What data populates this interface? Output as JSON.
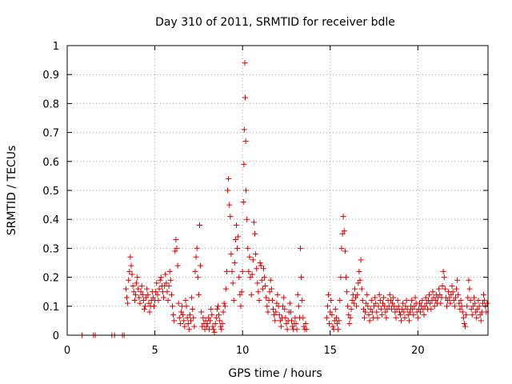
{
  "chart_data": {
    "type": "scatter",
    "title": "Day 310 of 2011, SRMTID for receiver bdle",
    "xlabel": "GPS time / hours",
    "ylabel": "SRMTID / TECUs",
    "xlim": [
      0,
      24
    ],
    "ylim": [
      0,
      1
    ],
    "xticks": [
      0,
      5,
      10,
      15,
      20
    ],
    "yticks": [
      0,
      0.1,
      0.2,
      0.3,
      0.4,
      0.5,
      0.6,
      0.7,
      0.8,
      0.9,
      1
    ],
    "grid": true,
    "marker": "plus",
    "marker_color": "#e00000",
    "points": [
      [
        0.85,
        0.0
      ],
      [
        1.5,
        0.0
      ],
      [
        1.6,
        0.0
      ],
      [
        2.55,
        0.0
      ],
      [
        2.7,
        0.0
      ],
      [
        3.15,
        0.0
      ],
      [
        3.25,
        0.0
      ],
      [
        3.35,
        0.16
      ],
      [
        3.4,
        0.13
      ],
      [
        3.45,
        0.11
      ],
      [
        3.5,
        0.19
      ],
      [
        3.55,
        0.22
      ],
      [
        3.6,
        0.27
      ],
      [
        3.65,
        0.24
      ],
      [
        3.7,
        0.21
      ],
      [
        3.75,
        0.17
      ],
      [
        3.8,
        0.15
      ],
      [
        3.85,
        0.12
      ],
      [
        3.9,
        0.14
      ],
      [
        3.95,
        0.18
      ],
      [
        4.0,
        0.2
      ],
      [
        4.05,
        0.16
      ],
      [
        4.1,
        0.13
      ],
      [
        4.15,
        0.11
      ],
      [
        4.2,
        0.15
      ],
      [
        4.25,
        0.17
      ],
      [
        4.3,
        0.14
      ],
      [
        4.35,
        0.12
      ],
      [
        4.4,
        0.09
      ],
      [
        4.45,
        0.1
      ],
      [
        4.5,
        0.13
      ],
      [
        4.55,
        0.16
      ],
      [
        4.6,
        0.14
      ],
      [
        4.65,
        0.11
      ],
      [
        4.7,
        0.08
      ],
      [
        4.75,
        0.1
      ],
      [
        4.8,
        0.12
      ],
      [
        4.85,
        0.15
      ],
      [
        4.9,
        0.13
      ],
      [
        4.95,
        0.1
      ],
      [
        5.0,
        0.12
      ],
      [
        5.05,
        0.15
      ],
      [
        5.1,
        0.18
      ],
      [
        5.15,
        0.14
      ],
      [
        5.2,
        0.12
      ],
      [
        5.25,
        0.16
      ],
      [
        5.3,
        0.19
      ],
      [
        5.35,
        0.2
      ],
      [
        5.4,
        0.17
      ],
      [
        5.45,
        0.15
      ],
      [
        5.5,
        0.13
      ],
      [
        5.55,
        0.17
      ],
      [
        5.6,
        0.21
      ],
      [
        5.65,
        0.18
      ],
      [
        5.7,
        0.15
      ],
      [
        5.75,
        0.12
      ],
      [
        5.8,
        0.17
      ],
      [
        5.85,
        0.22
      ],
      [
        5.9,
        0.19
      ],
      [
        5.95,
        0.14
      ],
      [
        6.0,
        0.1
      ],
      [
        6.05,
        0.07
      ],
      [
        6.1,
        0.05
      ],
      [
        6.15,
        0.29
      ],
      [
        6.2,
        0.33
      ],
      [
        6.25,
        0.3
      ],
      [
        6.3,
        0.24
      ],
      [
        6.35,
        0.11
      ],
      [
        6.4,
        0.06
      ],
      [
        6.45,
        0.04
      ],
      [
        6.5,
        0.08
      ],
      [
        6.55,
        0.1
      ],
      [
        6.6,
        0.07
      ],
      [
        6.65,
        0.05
      ],
      [
        6.7,
        0.03
      ],
      [
        6.75,
        0.12
      ],
      [
        6.8,
        0.1
      ],
      [
        6.85,
        0.06
      ],
      [
        6.9,
        0.04
      ],
      [
        6.95,
        0.02
      ],
      [
        7.0,
        0.07
      ],
      [
        7.05,
        0.05
      ],
      [
        7.1,
        0.13
      ],
      [
        7.15,
        0.09
      ],
      [
        7.2,
        0.06
      ],
      [
        7.25,
        0.03
      ],
      [
        7.3,
        0.22
      ],
      [
        7.35,
        0.27
      ],
      [
        7.4,
        0.3
      ],
      [
        7.45,
        0.2
      ],
      [
        7.5,
        0.14
      ],
      [
        7.55,
        0.38
      ],
      [
        7.6,
        0.24
      ],
      [
        7.65,
        0.08
      ],
      [
        7.7,
        0.03
      ],
      [
        7.75,
        0.06
      ],
      [
        7.8,
        0.04
      ],
      [
        7.85,
        0.02
      ],
      [
        7.9,
        0.05
      ],
      [
        7.95,
        0.03
      ],
      [
        8.0,
        0.04
      ],
      [
        8.05,
        0.06
      ],
      [
        8.1,
        0.02
      ],
      [
        8.15,
        0.05
      ],
      [
        8.2,
        0.09
      ],
      [
        8.25,
        0.07
      ],
      [
        8.3,
        0.03
      ],
      [
        8.35,
        0.02
      ],
      [
        8.4,
        0.01
      ],
      [
        8.45,
        0.04
      ],
      [
        8.5,
        0.06
      ],
      [
        8.55,
        0.09
      ],
      [
        8.6,
        0.1
      ],
      [
        8.65,
        0.07
      ],
      [
        8.7,
        0.05
      ],
      [
        8.75,
        0.03
      ],
      [
        8.8,
        0.02
      ],
      [
        8.85,
        0.04
      ],
      [
        8.9,
        0.08
      ],
      [
        8.95,
        0.11
      ],
      [
        9.0,
        0.1
      ],
      [
        9.05,
        0.16
      ],
      [
        9.1,
        0.22
      ],
      [
        9.15,
        0.5
      ],
      [
        9.2,
        0.54
      ],
      [
        9.25,
        0.45
      ],
      [
        9.3,
        0.41
      ],
      [
        9.35,
        0.28
      ],
      [
        9.4,
        0.22
      ],
      [
        9.45,
        0.18
      ],
      [
        9.5,
        0.12
      ],
      [
        9.55,
        0.25
      ],
      [
        9.6,
        0.33
      ],
      [
        9.65,
        0.38
      ],
      [
        9.7,
        0.3
      ],
      [
        9.75,
        0.34
      ],
      [
        9.8,
        0.2
      ],
      [
        9.85,
        0.14
      ],
      [
        9.9,
        0.1
      ],
      [
        9.95,
        0.15
      ],
      [
        10.0,
        0.22
      ],
      [
        10.05,
        0.46
      ],
      [
        10.08,
        0.59
      ],
      [
        10.1,
        0.71
      ],
      [
        10.13,
        0.94
      ],
      [
        10.15,
        0.82
      ],
      [
        10.18,
        0.67
      ],
      [
        10.2,
        0.5
      ],
      [
        10.25,
        0.4
      ],
      [
        10.3,
        0.3
      ],
      [
        10.35,
        0.22
      ],
      [
        10.4,
        0.27
      ],
      [
        10.45,
        0.2
      ],
      [
        10.5,
        0.14
      ],
      [
        10.55,
        0.21
      ],
      [
        10.6,
        0.26
      ],
      [
        10.65,
        0.39
      ],
      [
        10.7,
        0.35
      ],
      [
        10.75,
        0.28
      ],
      [
        10.8,
        0.23
      ],
      [
        10.85,
        0.18
      ],
      [
        10.9,
        0.15
      ],
      [
        10.95,
        0.12
      ],
      [
        11.0,
        0.25
      ],
      [
        11.05,
        0.24
      ],
      [
        11.1,
        0.19
      ],
      [
        11.15,
        0.16
      ],
      [
        11.2,
        0.23
      ],
      [
        11.25,
        0.2
      ],
      [
        11.3,
        0.17
      ],
      [
        11.35,
        0.13
      ],
      [
        11.4,
        0.1
      ],
      [
        11.45,
        0.08
      ],
      [
        11.5,
        0.12
      ],
      [
        11.55,
        0.15
      ],
      [
        11.6,
        0.19
      ],
      [
        11.65,
        0.16
      ],
      [
        11.7,
        0.12
      ],
      [
        11.75,
        0.09
      ],
      [
        11.8,
        0.07
      ],
      [
        11.85,
        0.05
      ],
      [
        11.9,
        0.08
      ],
      [
        11.95,
        0.11
      ],
      [
        12.0,
        0.14
      ],
      [
        12.05,
        0.1
      ],
      [
        12.1,
        0.07
      ],
      [
        12.15,
        0.05
      ],
      [
        12.2,
        0.03
      ],
      [
        12.25,
        0.06
      ],
      [
        12.3,
        0.1
      ],
      [
        12.35,
        0.13
      ],
      [
        12.4,
        0.09
      ],
      [
        12.45,
        0.06
      ],
      [
        12.5,
        0.04
      ],
      [
        12.55,
        0.02
      ],
      [
        12.6,
        0.05
      ],
      [
        12.65,
        0.08
      ],
      [
        12.7,
        0.11
      ],
      [
        12.75,
        0.08
      ],
      [
        12.8,
        0.05
      ],
      [
        12.85,
        0.03
      ],
      [
        12.9,
        0.02
      ],
      [
        12.95,
        0.04
      ],
      [
        13.0,
        0.06
      ],
      [
        13.05,
        0.04
      ],
      [
        13.1,
        0.02
      ],
      [
        13.15,
        0.14
      ],
      [
        13.2,
        0.1
      ],
      [
        13.25,
        0.06
      ],
      [
        13.3,
        0.3
      ],
      [
        13.35,
        0.2
      ],
      [
        13.4,
        0.12
      ],
      [
        13.45,
        0.06
      ],
      [
        13.5,
        0.03
      ],
      [
        13.55,
        0.02
      ],
      [
        13.6,
        0.04
      ],
      [
        13.65,
        0.02
      ],
      [
        14.8,
        0.06
      ],
      [
        14.85,
        0.1
      ],
      [
        14.9,
        0.14
      ],
      [
        14.95,
        0.04
      ],
      [
        15.0,
        0.08
      ],
      [
        15.05,
        0.12
      ],
      [
        15.1,
        0.07
      ],
      [
        15.15,
        0.03
      ],
      [
        15.2,
        0.02
      ],
      [
        15.25,
        0.05
      ],
      [
        15.3,
        0.09
      ],
      [
        15.35,
        0.06
      ],
      [
        15.4,
        0.04
      ],
      [
        15.45,
        0.02
      ],
      [
        15.5,
        0.05
      ],
      [
        15.55,
        0.12
      ],
      [
        15.6,
        0.2
      ],
      [
        15.65,
        0.3
      ],
      [
        15.7,
        0.35
      ],
      [
        15.75,
        0.41
      ],
      [
        15.8,
        0.36
      ],
      [
        15.85,
        0.29
      ],
      [
        15.9,
        0.2
      ],
      [
        15.95,
        0.15
      ],
      [
        16.0,
        0.1
      ],
      [
        16.05,
        0.07
      ],
      [
        16.1,
        0.04
      ],
      [
        16.15,
        0.06
      ],
      [
        16.2,
        0.09
      ],
      [
        16.25,
        0.12
      ],
      [
        16.3,
        0.14
      ],
      [
        16.35,
        0.11
      ],
      [
        16.4,
        0.16
      ],
      [
        16.45,
        0.13
      ],
      [
        16.5,
        0.1
      ],
      [
        16.55,
        0.14
      ],
      [
        16.6,
        0.18
      ],
      [
        16.65,
        0.22
      ],
      [
        16.7,
        0.19
      ],
      [
        16.75,
        0.26
      ],
      [
        16.8,
        0.16
      ],
      [
        16.85,
        0.12
      ],
      [
        16.9,
        0.09
      ],
      [
        16.95,
        0.06
      ],
      [
        17.0,
        0.08
      ],
      [
        17.05,
        0.11
      ],
      [
        17.1,
        0.14
      ],
      [
        17.15,
        0.1
      ],
      [
        17.2,
        0.07
      ],
      [
        17.25,
        0.05
      ],
      [
        17.3,
        0.09
      ],
      [
        17.35,
        0.12
      ],
      [
        17.4,
        0.08
      ],
      [
        17.45,
        0.06
      ],
      [
        17.5,
        0.1
      ],
      [
        17.55,
        0.13
      ],
      [
        17.6,
        0.11
      ],
      [
        17.65,
        0.08
      ],
      [
        17.7,
        0.06
      ],
      [
        17.75,
        0.1
      ],
      [
        17.8,
        0.14
      ],
      [
        17.85,
        0.12
      ],
      [
        17.9,
        0.09
      ],
      [
        17.95,
        0.07
      ],
      [
        18.0,
        0.11
      ],
      [
        18.05,
        0.13
      ],
      [
        18.1,
        0.1
      ],
      [
        18.15,
        0.08
      ],
      [
        18.2,
        0.06
      ],
      [
        18.25,
        0.09
      ],
      [
        18.3,
        0.12
      ],
      [
        18.35,
        0.1
      ],
      [
        18.4,
        0.14
      ],
      [
        18.45,
        0.12
      ],
      [
        18.5,
        0.09
      ],
      [
        18.55,
        0.11
      ],
      [
        18.6,
        0.13
      ],
      [
        18.65,
        0.1
      ],
      [
        18.7,
        0.08
      ],
      [
        18.75,
        0.06
      ],
      [
        18.8,
        0.09
      ],
      [
        18.85,
        0.12
      ],
      [
        18.9,
        0.1
      ],
      [
        18.95,
        0.08
      ],
      [
        19.0,
        0.07
      ],
      [
        19.05,
        0.05
      ],
      [
        19.1,
        0.09
      ],
      [
        19.15,
        0.11
      ],
      [
        19.2,
        0.08
      ],
      [
        19.25,
        0.06
      ],
      [
        19.3,
        0.1
      ],
      [
        19.35,
        0.12
      ],
      [
        19.4,
        0.09
      ],
      [
        19.45,
        0.07
      ],
      [
        19.5,
        0.05
      ],
      [
        19.55,
        0.08
      ],
      [
        19.6,
        0.1
      ],
      [
        19.65,
        0.12
      ],
      [
        19.7,
        0.09
      ],
      [
        19.75,
        0.07
      ],
      [
        19.8,
        0.1
      ],
      [
        19.85,
        0.13
      ],
      [
        19.9,
        0.11
      ],
      [
        19.95,
        0.08
      ],
      [
        20.0,
        0.06
      ],
      [
        20.05,
        0.09
      ],
      [
        20.1,
        0.11
      ],
      [
        20.15,
        0.08
      ],
      [
        20.2,
        0.1
      ],
      [
        20.25,
        0.12
      ],
      [
        20.3,
        0.09
      ],
      [
        20.35,
        0.07
      ],
      [
        20.4,
        0.1
      ],
      [
        20.45,
        0.13
      ],
      [
        20.5,
        0.11
      ],
      [
        20.55,
        0.09
      ],
      [
        20.6,
        0.12
      ],
      [
        20.65,
        0.14
      ],
      [
        20.7,
        0.11
      ],
      [
        20.75,
        0.09
      ],
      [
        20.8,
        0.12
      ],
      [
        20.85,
        0.15
      ],
      [
        20.9,
        0.13
      ],
      [
        20.95,
        0.1
      ],
      [
        21.0,
        0.12
      ],
      [
        21.05,
        0.14
      ],
      [
        21.1,
        0.11
      ],
      [
        21.15,
        0.13
      ],
      [
        21.2,
        0.16
      ],
      [
        21.25,
        0.14
      ],
      [
        21.3,
        0.11
      ],
      [
        21.35,
        0.13
      ],
      [
        21.4,
        0.17
      ],
      [
        21.45,
        0.22
      ],
      [
        21.5,
        0.2
      ],
      [
        21.55,
        0.16
      ],
      [
        21.6,
        0.13
      ],
      [
        21.65,
        0.1
      ],
      [
        21.7,
        0.12
      ],
      [
        21.75,
        0.15
      ],
      [
        21.8,
        0.13
      ],
      [
        21.85,
        0.11
      ],
      [
        21.9,
        0.14
      ],
      [
        21.95,
        0.17
      ],
      [
        22.0,
        0.15
      ],
      [
        22.05,
        0.12
      ],
      [
        22.1,
        0.1
      ],
      [
        22.15,
        0.13
      ],
      [
        22.2,
        0.16
      ],
      [
        22.25,
        0.19
      ],
      [
        22.3,
        0.14
      ],
      [
        22.35,
        0.11
      ],
      [
        22.4,
        0.09
      ],
      [
        22.45,
        0.12
      ],
      [
        22.5,
        0.1
      ],
      [
        22.55,
        0.08
      ],
      [
        22.6,
        0.06
      ],
      [
        22.65,
        0.04
      ],
      [
        22.7,
        0.03
      ],
      [
        22.75,
        0.07
      ],
      [
        22.8,
        0.1
      ],
      [
        22.85,
        0.13
      ],
      [
        22.9,
        0.19
      ],
      [
        22.95,
        0.16
      ],
      [
        23.0,
        0.12
      ],
      [
        23.05,
        0.09
      ],
      [
        23.1,
        0.07
      ],
      [
        23.15,
        0.1
      ],
      [
        23.2,
        0.13
      ],
      [
        23.25,
        0.11
      ],
      [
        23.3,
        0.08
      ],
      [
        23.35,
        0.06
      ],
      [
        23.4,
        0.09
      ],
      [
        23.45,
        0.12
      ],
      [
        23.5,
        0.1
      ],
      [
        23.55,
        0.07
      ],
      [
        23.6,
        0.05
      ],
      [
        23.65,
        0.08
      ],
      [
        23.7,
        0.11
      ],
      [
        23.75,
        0.14
      ],
      [
        23.8,
        0.12
      ],
      [
        23.85,
        0.1
      ],
      [
        23.9,
        0.08
      ],
      [
        23.95,
        0.11
      ]
    ]
  }
}
